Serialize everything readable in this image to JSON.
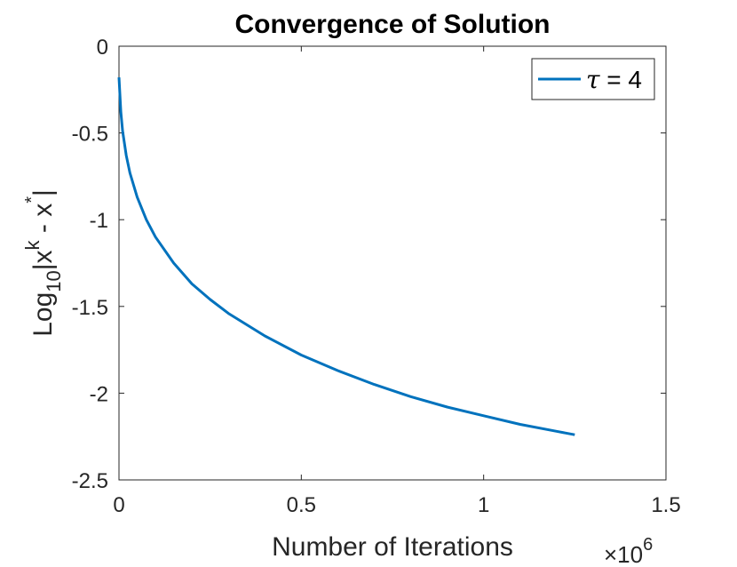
{
  "chart_data": {
    "type": "line",
    "title": "Convergence of Solution",
    "xlabel": "Number of Iterations",
    "ylabel": {
      "base": "Log",
      "subscript": "10",
      "body": "|x",
      "sup_k": "k",
      "mid": " - x",
      "sup_star": "*",
      "end": "|"
    },
    "x_multiplier": {
      "times": "×10",
      "exponent": "6"
    },
    "xlim": [
      0,
      1.5
    ],
    "ylim": [
      -2.5,
      0
    ],
    "xticks": [
      0,
      0.5,
      1,
      1.5
    ],
    "xtick_labels": [
      "0",
      "0.5",
      "1",
      "1.5"
    ],
    "yticks": [
      0,
      -0.5,
      -1,
      -1.5,
      -2,
      -2.5
    ],
    "ytick_labels": [
      "0",
      "-0.5",
      "-1",
      "-1.5",
      "-2",
      "-2.5"
    ],
    "grid": false,
    "legend_position": "top-right",
    "series": [
      {
        "name": {
          "symbol": "τ",
          "rest": " = 4"
        },
        "color": "#0072BD",
        "x": [
          0,
          0.005,
          0.01,
          0.02,
          0.03,
          0.05,
          0.075,
          0.1,
          0.15,
          0.2,
          0.25,
          0.3,
          0.4,
          0.5,
          0.6,
          0.7,
          0.8,
          0.9,
          1.0,
          1.1,
          1.2,
          1.25
        ],
        "y": [
          -0.18,
          -0.38,
          -0.49,
          -0.63,
          -0.73,
          -0.87,
          -1.0,
          -1.1,
          -1.25,
          -1.37,
          -1.46,
          -1.54,
          -1.67,
          -1.78,
          -1.87,
          -1.95,
          -2.02,
          -2.08,
          -2.13,
          -2.18,
          -2.22,
          -2.24
        ]
      }
    ]
  }
}
